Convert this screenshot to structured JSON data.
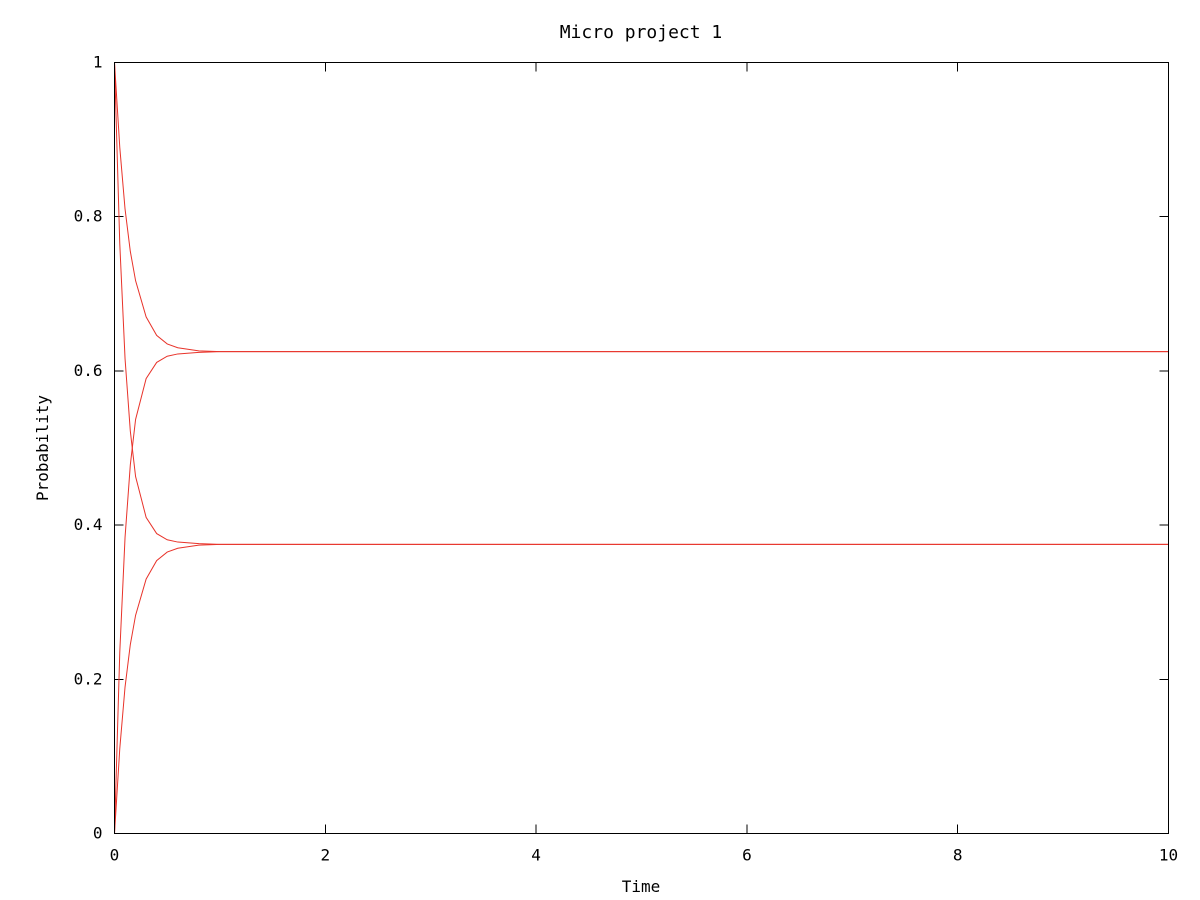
{
  "chart_data": {
    "type": "line",
    "title": "Micro project 1",
    "xlabel": "Time",
    "ylabel": "Probability",
    "xlim": [
      0,
      10
    ],
    "ylim": [
      0,
      1
    ],
    "xticks": [
      0,
      2,
      4,
      6,
      8,
      10
    ],
    "yticks": [
      0,
      0.2,
      0.4,
      0.6,
      0.8,
      1
    ],
    "grid": false,
    "legend": "none",
    "line_color": "#e8332a",
    "series": [
      {
        "x": [
          0,
          0.05,
          0.1,
          0.15,
          0.2,
          0.3,
          0.4,
          0.5,
          0.6,
          0.8,
          1,
          1.5,
          2,
          3,
          4,
          5,
          6,
          7,
          8,
          9,
          10
        ],
        "y": [
          1,
          0.89,
          0.81,
          0.755,
          0.717,
          0.67,
          0.646,
          0.635,
          0.63,
          0.626,
          0.625,
          0.625,
          0.625,
          0.625,
          0.625,
          0.625,
          0.625,
          0.625,
          0.625,
          0.625,
          0.625
        ]
      },
      {
        "x": [
          0,
          0.05,
          0.1,
          0.15,
          0.2,
          0.3,
          0.4,
          0.5,
          0.6,
          0.8,
          1,
          1.5,
          2,
          3,
          4,
          5,
          6,
          7,
          8,
          9,
          10
        ],
        "y": [
          0,
          0.235,
          0.384,
          0.478,
          0.537,
          0.59,
          0.611,
          0.619,
          0.622,
          0.624,
          0.625,
          0.625,
          0.625,
          0.625,
          0.625,
          0.625,
          0.625,
          0.625,
          0.625,
          0.625,
          0.625
        ]
      },
      {
        "x": [
          0,
          0.05,
          0.1,
          0.15,
          0.2,
          0.3,
          0.4,
          0.5,
          0.6,
          0.8,
          1,
          1.5,
          2,
          3,
          4,
          5,
          6,
          7,
          8,
          9,
          10
        ],
        "y": [
          1,
          0.765,
          0.616,
          0.522,
          0.463,
          0.41,
          0.389,
          0.381,
          0.378,
          0.376,
          0.375,
          0.375,
          0.375,
          0.375,
          0.375,
          0.375,
          0.375,
          0.375,
          0.375,
          0.375,
          0.375
        ]
      },
      {
        "x": [
          0,
          0.05,
          0.1,
          0.15,
          0.2,
          0.3,
          0.4,
          0.5,
          0.6,
          0.8,
          1,
          1.5,
          2,
          3,
          4,
          5,
          6,
          7,
          8,
          9,
          10
        ],
        "y": [
          0,
          0.11,
          0.19,
          0.245,
          0.283,
          0.33,
          0.354,
          0.365,
          0.37,
          0.374,
          0.375,
          0.375,
          0.375,
          0.375,
          0.375,
          0.375,
          0.375,
          0.375,
          0.375,
          0.375,
          0.375
        ]
      }
    ]
  }
}
